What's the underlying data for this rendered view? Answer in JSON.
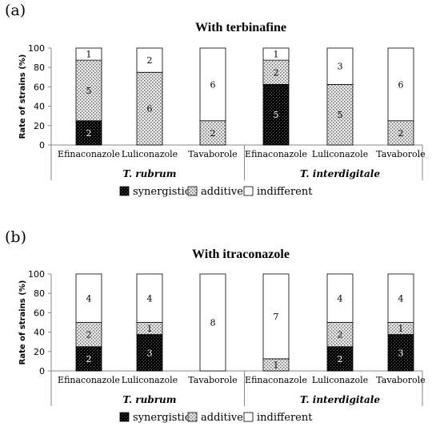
{
  "colors": {
    "synergistic": "#000000",
    "additive": "#c8c8c8",
    "indifferent": "#ffffff",
    "axis": "#888888"
  },
  "chart_data": [
    {
      "type": "bar",
      "stacked": true,
      "panel_label": "(a)",
      "title": "With terbinafine",
      "ylabel": "Rate of strains (%)",
      "ylim": [
        0,
        100
      ],
      "yticks": [
        0,
        20,
        40,
        60,
        80,
        100
      ],
      "categories": [
        "Efinaconazole",
        "Luliconazole",
        "Tavaborole",
        "Efinaconazole",
        "Luliconazole",
        "Tavaborole"
      ],
      "groups": [
        {
          "name": "T. rubrum",
          "categories": [
            0,
            1,
            2
          ]
        },
        {
          "name": "T. interdigitale",
          "categories": [
            3,
            4,
            5
          ]
        }
      ],
      "series": [
        {
          "name": "synergistic",
          "values": [
            25,
            0,
            0,
            62.5,
            0,
            0
          ],
          "labels": [
            "2",
            "",
            "",
            "5",
            "",
            ""
          ]
        },
        {
          "name": "additive",
          "values": [
            62.5,
            75,
            25,
            25,
            62.5,
            25
          ],
          "labels": [
            "5",
            "6",
            "2",
            "2",
            "5",
            "2"
          ]
        },
        {
          "name": "indifferent",
          "values": [
            12.5,
            25,
            75,
            12.5,
            37.5,
            75
          ],
          "labels": [
            "1",
            "2",
            "6",
            "1",
            "3",
            "6"
          ]
        }
      ],
      "legend": [
        "synergistic",
        "additive",
        "indifferent"
      ],
      "legend_position": "bottom"
    },
    {
      "type": "bar",
      "stacked": true,
      "panel_label": "(b)",
      "title": "With itraconazole",
      "ylabel": "Rate of strains (%)",
      "ylim": [
        0,
        100
      ],
      "yticks": [
        0,
        20,
        40,
        60,
        80,
        100
      ],
      "categories": [
        "Efinaconazole",
        "Luliconazole",
        "Tavaborole",
        "Efinaconazole",
        "Luliconazole",
        "Tavaborole"
      ],
      "groups": [
        {
          "name": "T. rubrum",
          "categories": [
            0,
            1,
            2
          ]
        },
        {
          "name": "T. interdigitale",
          "categories": [
            3,
            4,
            5
          ]
        }
      ],
      "series": [
        {
          "name": "synergistic",
          "values": [
            25,
            37.5,
            0,
            0,
            25,
            37.5
          ],
          "labels": [
            "2",
            "3",
            "",
            "",
            "2",
            "3"
          ]
        },
        {
          "name": "additive",
          "values": [
            25,
            12.5,
            0,
            12.5,
            25,
            12.5
          ],
          "labels": [
            "2",
            "1",
            "",
            "1",
            "2",
            "1"
          ]
        },
        {
          "name": "indifferent",
          "values": [
            50,
            50,
            100,
            87.5,
            50,
            50
          ],
          "labels": [
            "4",
            "4",
            "8",
            "7",
            "4",
            "4"
          ]
        }
      ],
      "legend": [
        "synergistic",
        "additive",
        "indifferent"
      ],
      "legend_position": "bottom"
    }
  ]
}
